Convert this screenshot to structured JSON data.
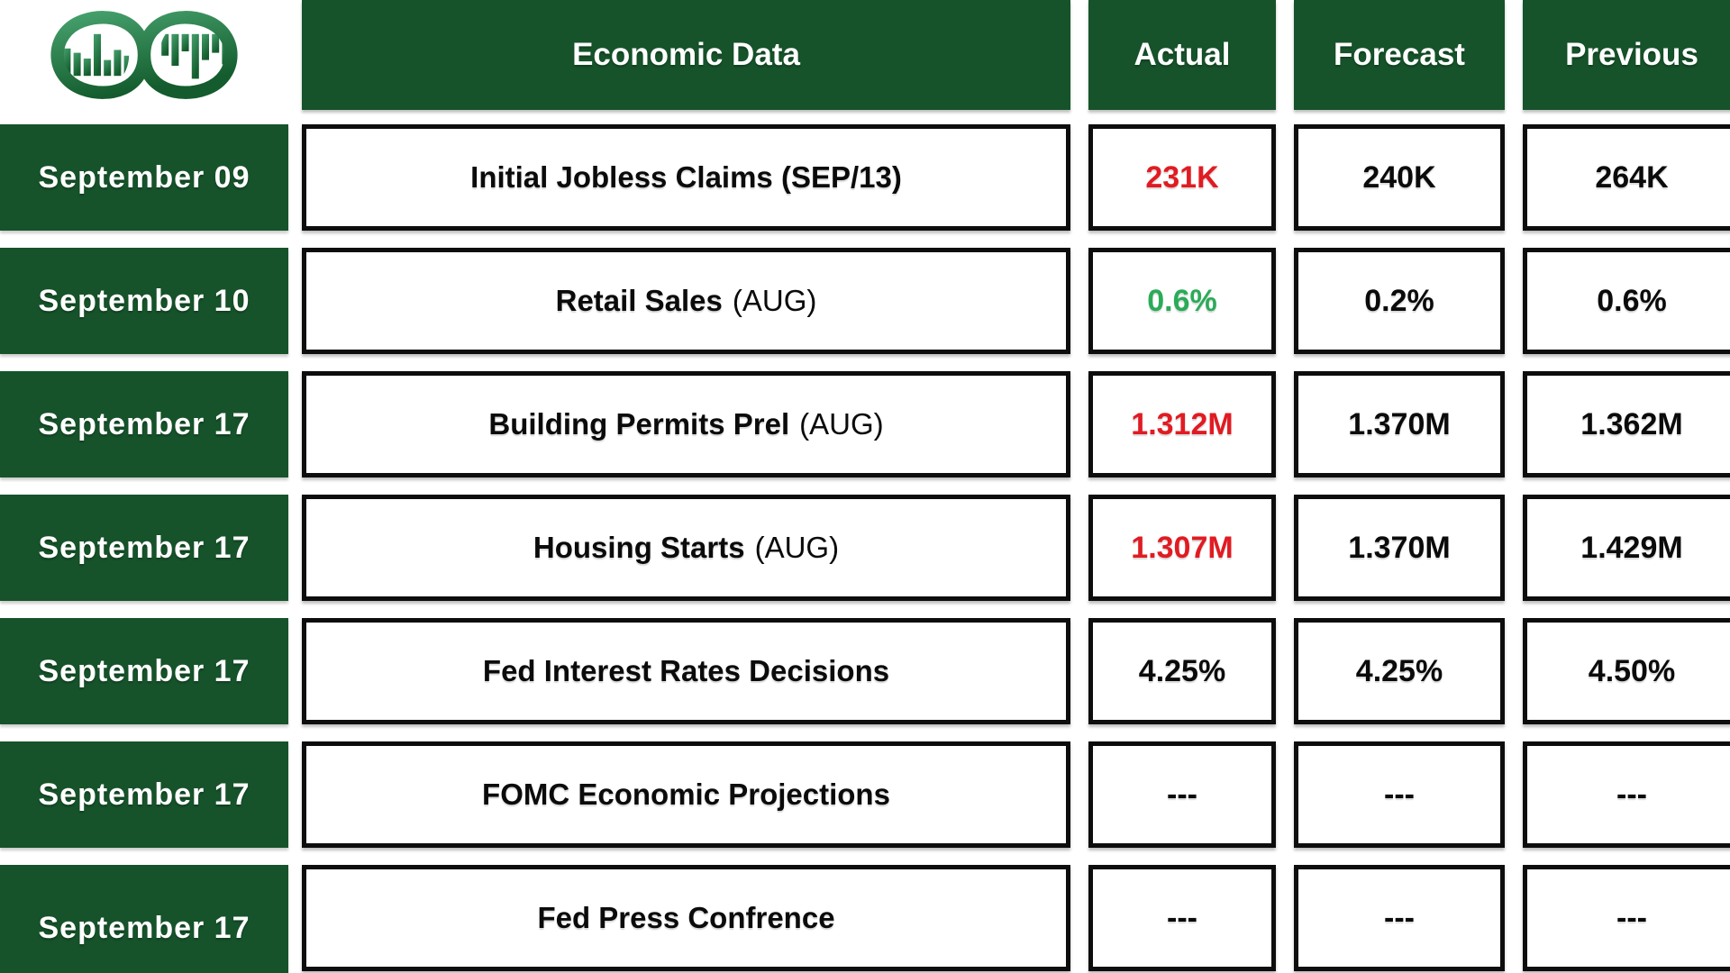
{
  "logo": {
    "name": "infinity-bar-chart-logo",
    "gradient_top": "#45A06C",
    "gradient_bottom": "#145C2D"
  },
  "colors": {
    "header_green": "#16532A",
    "value_red": "#E11B22",
    "value_green": "#2AAB58",
    "text_black": "#0B0B0B"
  },
  "header": {
    "economic_data": "Economic Data",
    "actual": "Actual",
    "forecast": "Forecast",
    "previous": "Previous"
  },
  "rows": [
    {
      "date": "September 09",
      "event": "Initial Jobless Claims (SEP/13)",
      "event_suffix": "",
      "actual": "231K",
      "actual_color": "red",
      "forecast": "240K",
      "previous": "264K"
    },
    {
      "date": "September 10",
      "event": "Retail Sales",
      "event_suffix": "(AUG)",
      "actual": "0.6%",
      "actual_color": "green",
      "forecast": "0.2%",
      "previous": "0.6%"
    },
    {
      "date": "September 17",
      "event": "Building Permits Prel",
      "event_suffix": "(AUG)",
      "actual": "1.312M",
      "actual_color": "red",
      "forecast": "1.370M",
      "previous": "1.362M"
    },
    {
      "date": "September 17",
      "event": "Housing Starts",
      "event_suffix": "(AUG)",
      "actual": "1.307M",
      "actual_color": "red",
      "forecast": "1.370M",
      "previous": "1.429M"
    },
    {
      "date": "September 17",
      "event": "Fed Interest Rates Decisions",
      "event_suffix": "",
      "actual": "4.25%",
      "actual_color": "black",
      "forecast": "4.25%",
      "previous": "4.50%"
    },
    {
      "date": "September 17",
      "event": "FOMC Economic Projections",
      "event_suffix": "",
      "actual": "---",
      "actual_color": "black",
      "forecast": "---",
      "previous": "---"
    },
    {
      "date": "September 17",
      "event": "Fed Press Confrence",
      "event_suffix": "",
      "actual": "---",
      "actual_color": "black",
      "forecast": "---",
      "previous": "---"
    }
  ]
}
